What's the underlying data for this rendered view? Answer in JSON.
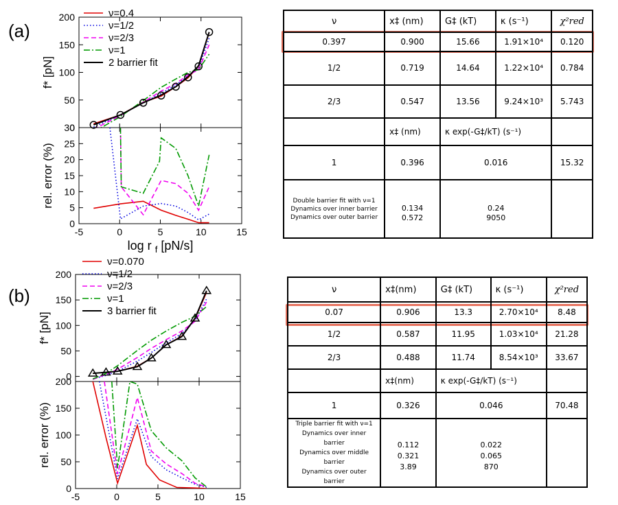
{
  "panels": {
    "a": {
      "label": "(a)"
    },
    "b": {
      "label": "(b)"
    }
  },
  "colors": {
    "red": "#e00000",
    "blue": "#0000e0",
    "magenta": "#f000f0",
    "green": "#009900",
    "black": "#000000",
    "highlight": "#e8735f"
  },
  "table_a": {
    "head": [
      "ν",
      "x‡ (nm)",
      "G‡ (kT)",
      "κ (s⁻¹)",
      "χ²red"
    ],
    "rows": [
      [
        "0.397",
        "0.900",
        "15.66",
        "1.91×10⁴",
        "0.120"
      ],
      [
        "1/2",
        "0.719",
        "14.64",
        "1.22×10⁴",
        "0.784"
      ],
      [
        "2/3",
        "0.547",
        "13.56",
        "9.24×10³",
        "5.743"
      ]
    ],
    "head2": [
      "x‡ (nm)",
      "κ exp(-G‡/kT) (s⁻¹)"
    ],
    "row_v1": [
      "1",
      "0.396",
      "0.016",
      "15.32"
    ],
    "notes": [
      "Double barrier fit with ν=1",
      "Dynamics over inner barrier",
      "Dynamics over outer barrier"
    ],
    "notes_x": [
      "0.134",
      "0.572"
    ],
    "notes_k": [
      "0.24",
      "9050"
    ]
  },
  "table_b": {
    "head": [
      "ν",
      "x‡(nm)",
      "G‡ (kT)",
      "κ (s⁻¹)",
      "χ²red"
    ],
    "rows": [
      [
        "0.07",
        "0.906",
        "13.3",
        "2.70×10⁴",
        "8.48"
      ],
      [
        "1/2",
        "0.587",
        "11.95",
        "1.03×10⁴",
        "21.28"
      ],
      [
        "2/3",
        "0.488",
        "11.74",
        "8.54×10³",
        "33.67"
      ]
    ],
    "head2": [
      "x‡(nm)",
      "κ exp(-G‡/kT) (s⁻¹)"
    ],
    "row_v1": [
      "1",
      "0.326",
      "0.046",
      "70.48"
    ],
    "notes": [
      "Triple barrier fit with ν=1",
      "Dynamics over inner barrier",
      "Dynamics over middle barrier",
      "Dynamics over outer barrier"
    ],
    "notes_x": [
      "0.112",
      "0.321",
      "3.89"
    ],
    "notes_k": [
      "0.022",
      "0.065",
      "870"
    ]
  },
  "chart_data": [
    {
      "panel": "a",
      "type": "line",
      "ylabel": "f* [pN]",
      "xlim": [
        -5,
        15
      ],
      "ylim": [
        0,
        200
      ],
      "yticks": [
        "0",
        "50",
        "100",
        "150",
        "200"
      ],
      "markers": {
        "shape": "circle",
        "x": [
          -3.2,
          0.1,
          2.9,
          5.1,
          6.9,
          8.4,
          9.7,
          11.0
        ],
        "y": [
          5,
          23,
          45,
          58,
          74,
          91,
          111,
          173
        ]
      },
      "series": [
        {
          "name": "ν=0.4",
          "color": "red",
          "dash": "solid",
          "x": [
            -3.2,
            0.1,
            2.9,
            5.1,
            6.9,
            8.4,
            9.7,
            11.0
          ],
          "y": [
            7,
            23,
            46,
            57,
            74,
            90,
            111,
            172
          ]
        },
        {
          "name": "ν=1/2",
          "color": "blue",
          "dash": "dotted",
          "x": [
            -3.2,
            0.1,
            2.9,
            5.1,
            6.9,
            8.4,
            9.7,
            11.0
          ],
          "y": [
            1,
            23,
            45,
            62,
            77,
            93,
            108,
            162
          ]
        },
        {
          "name": "ν=2/3",
          "color": "magenta",
          "dash": "dashed",
          "x": [
            -3.2,
            0.1,
            2.9,
            5.1,
            6.9,
            8.4,
            9.7,
            11.0
          ],
          "y": [
            -3,
            22,
            46,
            66,
            80,
            95,
            105,
            150
          ]
        },
        {
          "name": "ν=1",
          "color": "green",
          "dash": "dashdot",
          "x": [
            -3.2,
            0.1,
            2.9,
            5.1,
            6.9,
            8.4,
            9.7,
            11.0
          ],
          "y": [
            -8,
            20,
            49,
            73,
            88,
            100,
            105,
            133
          ]
        },
        {
          "name": "2 barrier fit",
          "color": "black",
          "dash": "solid",
          "x": [
            -3.2,
            0.1,
            2.9,
            5.1,
            6.9,
            8.4,
            9.7,
            11.0
          ],
          "y": [
            5,
            23,
            45,
            59,
            74,
            92,
            112,
            173
          ]
        }
      ]
    },
    {
      "panel": "a",
      "type": "line",
      "xlabel": "log r",
      "xlabel_sub": "f",
      "xlabel_unit": "[pN/s]",
      "ylabel": "rel. error (%)",
      "xlim": [
        -5,
        15
      ],
      "ylim": [
        0,
        30
      ],
      "xticks": [
        "-5",
        "0",
        "5",
        "10",
        "15"
      ],
      "yticks": [
        "0",
        "5",
        "10",
        "15",
        "20",
        "25",
        "30"
      ],
      "series": [
        {
          "name": "ν=0.4",
          "color": "red",
          "dash": "solid",
          "x": [
            -3.2,
            0.1,
            2.9,
            5.1,
            6.9,
            8.4,
            9.7,
            11.0
          ],
          "y": [
            4.8,
            6.2,
            7.0,
            4.2,
            2.6,
            1.4,
            0.3,
            0.3
          ]
        },
        {
          "name": "ν=1/2",
          "color": "blue",
          "dash": "dotted",
          "x": [
            -1.2,
            0.1,
            2.9,
            5.1,
            6.9,
            8.4,
            9.7,
            11.0
          ],
          "y": [
            30,
            1.5,
            5.5,
            6.3,
            5.5,
            3.5,
            1.2,
            3.0
          ]
        },
        {
          "name": "ν=2/3",
          "color": "magenta",
          "dash": "dashed",
          "x": [
            0.1,
            0.2,
            2.9,
            5.1,
            6.9,
            8.4,
            9.7,
            11.0
          ],
          "y": [
            30,
            11.5,
            2.8,
            13.5,
            12.5,
            9.5,
            4.2,
            11.5
          ]
        },
        {
          "name": "ν=1",
          "color": "green",
          "dash": "dashdot",
          "x": [
            0.1,
            0.2,
            2.9,
            4.9,
            5.1,
            6.9,
            8.4,
            9.7,
            11.0
          ],
          "y": [
            30,
            11.5,
            9.5,
            19.5,
            26.8,
            23.5,
            15.0,
            5.5,
            21.5
          ]
        }
      ]
    },
    {
      "panel": "b",
      "type": "line",
      "ylabel": "f* [pN]",
      "xlim": [
        -5,
        15
      ],
      "ylim": [
        -10,
        200
      ],
      "yticks": [
        "0",
        "50",
        "100",
        "150",
        "200"
      ],
      "markers": {
        "shape": "triangle",
        "x": [
          -2.9,
          -1.3,
          0.1,
          2.5,
          4.2,
          6.0,
          7.9,
          9.5,
          10.9
        ],
        "y": [
          6,
          8,
          10,
          19,
          36,
          62,
          78,
          114,
          168
        ]
      },
      "series": [
        {
          "name": "ν=0.070",
          "color": "red",
          "dash": "solid",
          "x": [
            -2.9,
            -1.3,
            0.1,
            2.5,
            4.2,
            6.0,
            7.9,
            9.5,
            10.9
          ],
          "y": [
            6,
            8,
            10,
            20,
            36,
            62,
            79,
            113,
            165
          ]
        },
        {
          "name": "ν=1/2",
          "color": "blue",
          "dash": "dotted",
          "x": [
            -2.9,
            -1.3,
            0.1,
            2.5,
            4.2,
            6.0,
            7.9,
            9.5,
            10.9
          ],
          "y": [
            -5,
            2,
            10,
            30,
            47,
            66,
            84,
            109,
            152
          ]
        },
        {
          "name": "ν=2/3",
          "color": "magenta",
          "dash": "dashed",
          "x": [
            -2.9,
            -1.3,
            0.1,
            2.5,
            4.2,
            6.0,
            7.9,
            9.5,
            10.9
          ],
          "y": [
            -6,
            4,
            14,
            37,
            55,
            72,
            89,
            108,
            146
          ]
        },
        {
          "name": "ν=1",
          "color": "green",
          "dash": "dashdot",
          "x": [
            -2.9,
            -1.3,
            0.1,
            2.5,
            4.2,
            6.0,
            7.9,
            9.5,
            10.9
          ],
          "y": [
            -5,
            6,
            21,
            51,
            71,
            89,
            106,
            118,
            137
          ]
        },
        {
          "name": "3 barrier fit",
          "color": "black",
          "dash": "solid",
          "x": [
            -2.9,
            -1.3,
            0.1,
            2.5,
            4.2,
            6.0,
            7.9,
            9.5,
            10.9
          ],
          "y": [
            6,
            8,
            10,
            19,
            36,
            62,
            78,
            114,
            168
          ]
        }
      ]
    },
    {
      "panel": "b",
      "type": "line",
      "xlabel": "log r",
      "xlabel_sub": "f",
      "xlabel_unit": "[pN/s]",
      "ylabel": "rel. error (%)",
      "xlim": [
        -5,
        15
      ],
      "ylim": [
        0,
        200
      ],
      "xticks": [
        "-5",
        "0",
        "5",
        "10",
        "15"
      ],
      "yticks": [
        "0",
        "50",
        "100",
        "150",
        "200"
      ],
      "series": [
        {
          "name": "ν=0.070",
          "color": "red",
          "dash": "solid",
          "x": [
            -2.9,
            -1.3,
            0.1,
            2.5,
            3.6,
            5.2,
            7.3,
            9.5,
            10.9
          ],
          "y": [
            200,
            95,
            10,
            118,
            45,
            16,
            2,
            1,
            0
          ]
        },
        {
          "name": "ν=1/2",
          "color": "blue",
          "dash": "dotted",
          "x": [
            -2.1,
            0.1,
            2.5,
            4.2,
            6.0,
            7.9,
            9.5,
            10.9
          ],
          "y": [
            200,
            18,
            130,
            60,
            35,
            20,
            8,
            2
          ]
        },
        {
          "name": "ν=2/3",
          "color": "magenta",
          "dash": "dashed",
          "x": [
            -1.5,
            0.1,
            2.5,
            4.2,
            6.0,
            7.9,
            9.5,
            10.9
          ],
          "y": [
            200,
            27,
            170,
            70,
            46,
            28,
            10,
            3
          ]
        },
        {
          "name": "ν=1",
          "color": "green",
          "dash": "dashdot",
          "x": [
            -0.6,
            0.1,
            1.6,
            2.5,
            4.2,
            6.0,
            7.9,
            9.5,
            10.9
          ],
          "y": [
            200,
            38,
            200,
            195,
            108,
            76,
            52,
            20,
            3
          ]
        }
      ]
    }
  ]
}
